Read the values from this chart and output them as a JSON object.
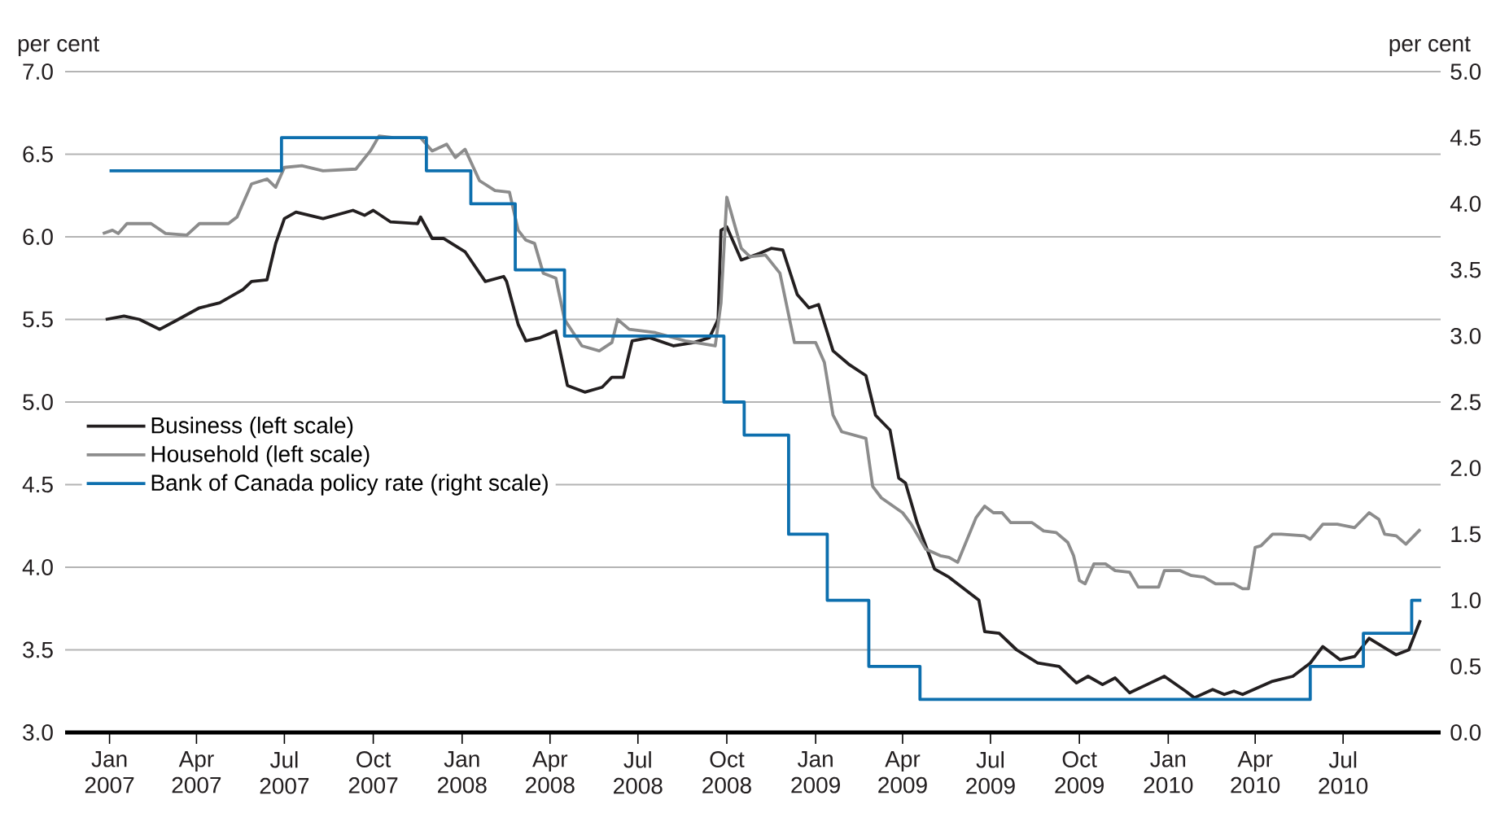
{
  "chart_data": {
    "type": "line",
    "ylabel": "per cent",
    "y2label": "per cent",
    "xlim": [
      "2006-11-16",
      "2010-10-10"
    ],
    "ylim": [
      3,
      7
    ],
    "y2lim": [
      0,
      5
    ],
    "xticks": [
      {
        "value": "2007-01",
        "label": "Jan 2007"
      },
      {
        "value": "2007-04",
        "label": "Apr 2007"
      },
      {
        "value": "2007-07",
        "label": "Jul 2007"
      },
      {
        "value": "2007-10",
        "label": "Oct 2007"
      },
      {
        "value": "2008-01",
        "label": "Jan 2008"
      },
      {
        "value": "2008-04",
        "label": "Apr 2008"
      },
      {
        "value": "2008-07",
        "label": "Jul 2008"
      },
      {
        "value": "2008-10",
        "label": "Oct 2008"
      },
      {
        "value": "2009-01",
        "label": "Jan 2009"
      },
      {
        "value": "2009-04",
        "label": "Apr 2009"
      },
      {
        "value": "2009-07",
        "label": "Jul 2009"
      },
      {
        "value": "2009-10",
        "label": "Oct 2009"
      },
      {
        "value": "2010-01",
        "label": "Jan 2010"
      },
      {
        "value": "2010-04",
        "label": "Apr 2010"
      },
      {
        "value": "2010-07",
        "label": "Jul 2010"
      }
    ],
    "yticks": [
      {
        "value": 3,
        "label": "3.0"
      },
      3.5,
      {
        "value": 4,
        "label": "4.0"
      },
      4.5,
      {
        "value": 5,
        "label": "5.0"
      },
      5.5,
      {
        "value": 6,
        "label": "6.0"
      },
      6.5,
      {
        "value": 7,
        "label": "7.0"
      }
    ],
    "y2ticks": [
      {
        "value": 0,
        "label": "0.0"
      },
      0.5,
      {
        "value": 1,
        "label": "1.0"
      },
      1.5,
      {
        "value": 2,
        "label": "2.0"
      },
      2.5,
      {
        "value": 3,
        "label": "3.0"
      },
      3.5,
      {
        "value": 4,
        "label": "4.0"
      },
      4.5,
      {
        "value": 5,
        "label": "5.0"
      }
    ],
    "grid": "y",
    "legend": "left",
    "series": [
      {
        "name": "Business (left scale)",
        "color": "#231f20",
        "x": [
          "2006-12-28",
          "2007-01-16",
          "2007-02-01",
          "2007-02-22",
          "2007-03-10",
          "2007-04-04",
          "2007-04-25",
          "2007-05-19",
          "2007-05-28",
          "2007-06-13",
          "2007-06-22",
          "2007-07-01",
          "2007-07-13",
          "2007-08-10",
          "2007-09-10",
          "2007-09-22",
          "2007-10-01",
          "2007-10-19",
          "2007-11-16",
          "2007-11-19",
          "2007-12-01",
          "2007-12-13",
          "2008-01-04",
          "2008-01-25",
          "2008-02-13",
          "2008-02-16",
          "2008-02-28",
          "2008-03-07",
          "2008-03-22",
          "2008-04-07",
          "2008-04-19",
          "2008-05-07",
          "2008-05-25",
          "2008-06-04",
          "2008-06-16",
          "2008-06-25",
          "2008-07-13",
          "2008-08-07",
          "2008-08-28",
          "2008-09-13",
          "2008-09-22",
          "2008-09-25",
          "2008-10-01",
          "2008-10-16",
          "2008-11-04",
          "2008-11-16",
          "2008-11-28",
          "2008-12-13",
          "2008-12-25",
          "2009-01-04",
          "2009-01-19",
          "2009-02-04",
          "2009-02-22",
          "2009-03-04",
          "2009-03-19",
          "2009-03-28",
          "2009-04-04",
          "2009-04-16",
          "2009-05-04",
          "2009-05-19",
          "2009-06-19",
          "2009-06-25",
          "2009-07-10",
          "2009-07-28",
          "2009-08-19",
          "2009-09-10",
          "2009-09-28",
          "2009-10-10",
          "2009-10-25",
          "2009-11-07",
          "2009-11-22",
          "2009-12-10",
          "2009-12-28",
          "2010-01-19",
          "2010-01-28",
          "2010-02-16",
          "2010-02-28",
          "2010-03-10",
          "2010-03-19",
          "2010-04-19",
          "2010-05-10",
          "2010-05-28",
          "2010-06-10",
          "2010-06-28",
          "2010-07-13",
          "2010-07-28",
          "2010-08-25",
          "2010-09-07",
          "2010-09-19"
        ],
        "values": [
          5.5,
          5.52,
          5.5,
          5.44,
          5.49,
          5.57,
          5.6,
          5.68,
          5.73,
          5.74,
          5.96,
          6.11,
          6.15,
          6.11,
          6.16,
          6.13,
          6.16,
          6.09,
          6.08,
          6.12,
          5.99,
          5.99,
          5.91,
          5.73,
          5.76,
          5.73,
          5.47,
          5.37,
          5.39,
          5.43,
          5.1,
          5.06,
          5.09,
          5.15,
          5.15,
          5.37,
          5.39,
          5.34,
          5.36,
          5.39,
          5.5,
          6.04,
          6.06,
          5.86,
          5.9,
          5.93,
          5.92,
          5.65,
          5.57,
          5.59,
          5.31,
          5.23,
          5.16,
          4.92,
          4.83,
          4.54,
          4.51,
          4.27,
          3.99,
          3.94,
          3.8,
          3.61,
          3.6,
          3.5,
          3.42,
          3.4,
          3.3,
          3.34,
          3.29,
          3.33,
          3.24,
          3.29,
          3.34,
          3.25,
          3.21,
          3.26,
          3.23,
          3.25,
          3.23,
          3.31,
          3.34,
          3.42,
          3.52,
          3.44,
          3.46,
          3.57,
          3.47,
          3.5,
          3.68
        ]
      },
      {
        "name": "Household (left scale)",
        "color": "#8c8c8c",
        "x": [
          "2006-12-25",
          "2007-01-04",
          "2007-01-10",
          "2007-01-19",
          "2007-02-13",
          "2007-02-28",
          "2007-03-22",
          "2007-04-04",
          "2007-05-04",
          "2007-05-13",
          "2007-05-28",
          "2007-06-13",
          "2007-06-22",
          "2007-07-01",
          "2007-07-19",
          "2007-08-10",
          "2007-09-13",
          "2007-09-28",
          "2007-10-07",
          "2007-10-22",
          "2007-11-19",
          "2007-12-01",
          "2007-12-16",
          "2007-12-25",
          "2008-01-04",
          "2008-01-19",
          "2008-02-04",
          "2008-02-19",
          "2008-02-28",
          "2008-03-07",
          "2008-03-16",
          "2008-03-25",
          "2008-04-07",
          "2008-04-16",
          "2008-05-04",
          "2008-05-22",
          "2008-06-04",
          "2008-06-10",
          "2008-06-22",
          "2008-07-19",
          "2008-08-19",
          "2008-09-19",
          "2008-09-25",
          "2008-10-01",
          "2008-10-16",
          "2008-10-25",
          "2008-11-10",
          "2008-11-25",
          "2008-12-10",
          "2009-01-01",
          "2009-01-10",
          "2009-01-19",
          "2009-01-28",
          "2009-02-22",
          "2009-03-01",
          "2009-03-10",
          "2009-04-01",
          "2009-04-10",
          "2009-04-25",
          "2009-05-10",
          "2009-05-19",
          "2009-05-28",
          "2009-06-16",
          "2009-06-25",
          "2009-07-04",
          "2009-07-13",
          "2009-07-22",
          "2009-08-13",
          "2009-08-25",
          "2009-09-07",
          "2009-09-19",
          "2009-09-25",
          "2009-10-01",
          "2009-10-07",
          "2009-10-16",
          "2009-10-28",
          "2009-11-07",
          "2009-11-22",
          "2009-12-01",
          "2009-12-22",
          "2009-12-28",
          "2010-01-13",
          "2010-01-25",
          "2010-02-07",
          "2010-02-19",
          "2010-03-10",
          "2010-03-19",
          "2010-03-25",
          "2010-04-01",
          "2010-04-07",
          "2010-04-19",
          "2010-04-28",
          "2010-05-22",
          "2010-05-28",
          "2010-06-10",
          "2010-06-25",
          "2010-07-13",
          "2010-07-28",
          "2010-08-07",
          "2010-08-13",
          "2010-08-25",
          "2010-09-04",
          "2010-09-19"
        ],
        "values": [
          6.02,
          6.04,
          6.02,
          6.08,
          6.08,
          6.02,
          6.01,
          6.08,
          6.08,
          6.12,
          6.32,
          6.35,
          6.3,
          6.42,
          6.43,
          6.4,
          6.41,
          6.52,
          6.61,
          6.6,
          6.6,
          6.52,
          6.56,
          6.48,
          6.53,
          6.34,
          6.28,
          6.27,
          6.04,
          5.98,
          5.96,
          5.78,
          5.75,
          5.5,
          5.34,
          5.31,
          5.36,
          5.5,
          5.44,
          5.42,
          5.37,
          5.34,
          5.6,
          6.24,
          5.93,
          5.88,
          5.89,
          5.78,
          5.36,
          5.36,
          5.24,
          4.92,
          4.82,
          4.78,
          4.49,
          4.42,
          4.33,
          4.26,
          4.11,
          4.07,
          4.06,
          4.03,
          4.3,
          4.37,
          4.33,
          4.33,
          4.27,
          4.27,
          4.22,
          4.21,
          4.15,
          4.07,
          3.92,
          3.9,
          4.02,
          4.02,
          3.98,
          3.97,
          3.88,
          3.88,
          3.98,
          3.98,
          3.95,
          3.94,
          3.9,
          3.9,
          3.87,
          3.87,
          4.12,
          4.13,
          4.2,
          4.2,
          4.19,
          4.17,
          4.26,
          4.26,
          4.24,
          4.33,
          4.29,
          4.2,
          4.19,
          4.14,
          4.23
        ]
      },
      {
        "name": "Bank of Canada policy rate (right scale)",
        "color": "#0d6fae",
        "type": "step",
        "axis": "y2",
        "x": [
          "2007-01-01",
          "2007-06-28",
          "2007-11-25",
          "2008-01-10",
          "2008-02-25",
          "2008-04-16",
          "2008-09-28",
          "2008-10-19",
          "2008-12-04",
          "2009-01-13",
          "2009-02-25",
          "2009-04-19",
          "2010-05-28",
          "2010-07-22",
          "2010-09-10",
          "2010-09-20"
        ],
        "values": [
          4.25,
          4.5,
          4.25,
          4.0,
          3.5,
          3.0,
          2.5,
          2.25,
          1.5,
          1.0,
          0.5,
          0.25,
          0.5,
          0.75,
          1.0,
          1.0
        ]
      }
    ]
  }
}
